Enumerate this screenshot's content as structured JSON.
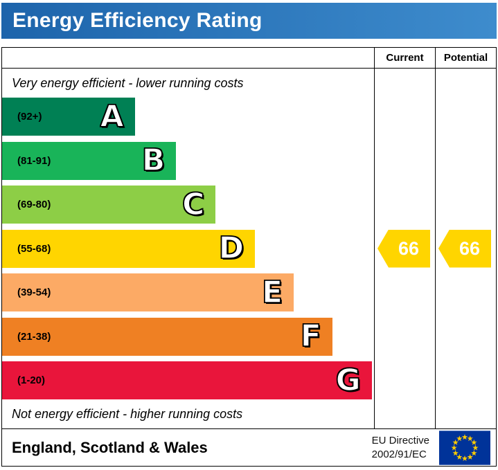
{
  "header": {
    "title": "Energy Efficiency Rating",
    "background_left": "#1d64ab",
    "background_right": "#3e8ccd",
    "text_color": "#ffffff"
  },
  "table": {
    "current_label": "Current",
    "potential_label": "Potential",
    "top_note": "Very energy efficient - lower running costs",
    "bottom_note": "Not energy efficient - higher running costs"
  },
  "chart_data": {
    "type": "bar",
    "title": "Energy Efficiency Rating",
    "categories": [
      "A",
      "B",
      "C",
      "D",
      "E",
      "F",
      "G"
    ],
    "bands": [
      {
        "letter": "A",
        "range": "(92+)",
        "color": "#008054",
        "width_pct": 35.7
      },
      {
        "letter": "B",
        "range": "(81-91)",
        "color": "#19b459",
        "width_pct": 46.8
      },
      {
        "letter": "C",
        "range": "(69-80)",
        "color": "#8dce46",
        "width_pct": 57.4
      },
      {
        "letter": "D",
        "range": "(55-68)",
        "color": "#ffd500",
        "width_pct": 68.0
      },
      {
        "letter": "E",
        "range": "(39-54)",
        "color": "#fcaa65",
        "width_pct": 78.4
      },
      {
        "letter": "F",
        "range": "(21-38)",
        "color": "#ef8023",
        "width_pct": 88.8
      },
      {
        "letter": "G",
        "range": "(1-20)",
        "color": "#e9153b",
        "width_pct": 99.4
      }
    ],
    "current": {
      "value": 66,
      "band": "D",
      "color": "#ffd500"
    },
    "potential": {
      "value": 66,
      "band": "D",
      "color": "#ffd500"
    }
  },
  "footer": {
    "region": "England, Scotland & Wales",
    "directive_line1": "EU Directive",
    "directive_line2": "2002/91/EC",
    "flag": {
      "background": "#003399",
      "star_color": "#ffcc00"
    }
  }
}
